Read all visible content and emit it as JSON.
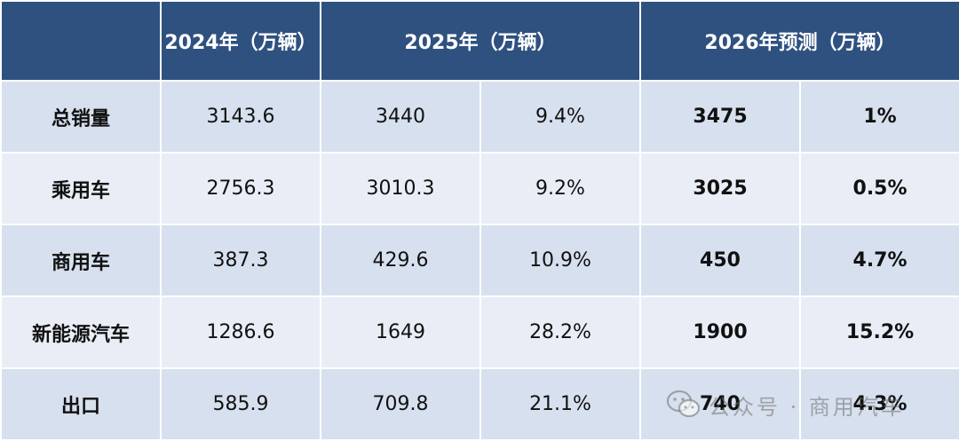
{
  "header": {
    "corner": "",
    "col_2024": "2024年（万辆）",
    "col_2025": "2025年（万辆）",
    "col_2026": "2026年预测（万辆）"
  },
  "rows": [
    {
      "label": "总销量",
      "v2024": "3143.6",
      "v2025": "3440",
      "g2025": "9.4%",
      "v2026": "3475",
      "g2026": "1%"
    },
    {
      "label": "乘用车",
      "v2024": "2756.3",
      "v2025": "3010.3",
      "g2025": "9.2%",
      "v2026": "3025",
      "g2026": "0.5%"
    },
    {
      "label": "商用车",
      "v2024": "387.3",
      "v2025": "429.6",
      "g2025": "10.9%",
      "v2026": "450",
      "g2026": "4.7%"
    },
    {
      "label": "新能源汽车",
      "v2024": "1286.6",
      "v2025": "1649",
      "g2025": "28.2%",
      "v2026": "1900",
      "g2026": "15.2%"
    },
    {
      "label": "出口",
      "v2024": "585.9",
      "v2025": "709.8",
      "g2025": "21.1%",
      "v2026": "740",
      "g2026": "4.3%"
    }
  ],
  "watermark": {
    "icon": "wechat-icon",
    "text": "公众号 · 商用汽车"
  },
  "colors": {
    "header_bg": "#2f5180",
    "row_odd": "#d7e0ee",
    "row_even": "#e9eef6"
  }
}
